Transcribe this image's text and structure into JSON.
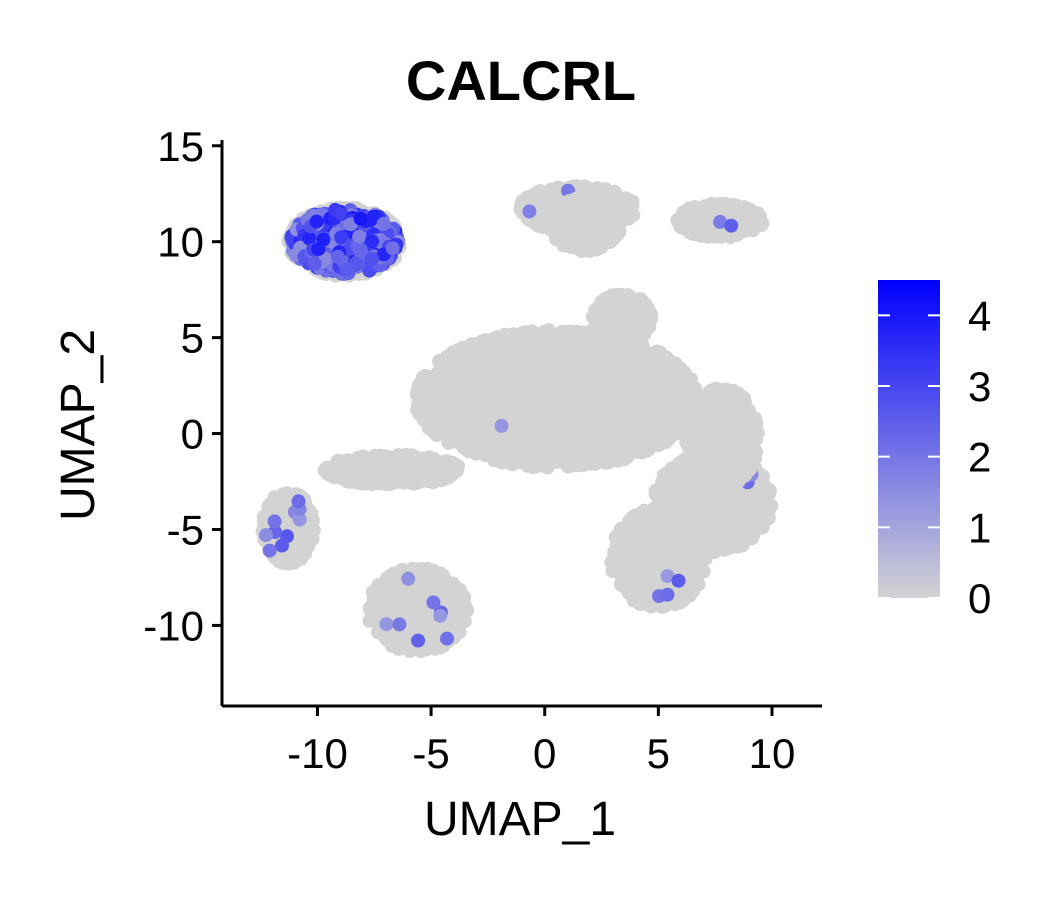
{
  "chart_data": {
    "type": "scatter",
    "title": "CALCRL",
    "xlabel": "UMAP_1",
    "ylabel": "UMAP_2",
    "xlim": [
      -14.2,
      12.2
    ],
    "ylim": [
      -14.2,
      15.3
    ],
    "xticks": [
      -10,
      -5,
      0,
      5,
      10
    ],
    "xtick_labels": [
      "-10",
      "-5",
      "0",
      "5",
      "10"
    ],
    "yticks": [
      15,
      10,
      5,
      0,
      -5,
      -10
    ],
    "ytick_labels": [
      "15",
      "10",
      "5",
      "0",
      "-5",
      "-10"
    ],
    "grid": false,
    "legend": {
      "type": "colorbar",
      "placement": "right",
      "min": 0,
      "max": 4.5,
      "ticks": [
        4,
        3,
        2,
        1,
        0
      ],
      "tick_labels": [
        "4",
        "3",
        "2",
        "1",
        "0"
      ],
      "low_color": "#d3d3d3",
      "high_color": "#0000ff"
    },
    "clusters": [
      {
        "cx": -8.8,
        "cy": 10.0,
        "rx": 2.5,
        "ry": 1.8,
        "expr": 2.6
      },
      {
        "cx": -11.3,
        "cy": -4.9,
        "rx": 1.15,
        "ry": 1.9,
        "expr": 0.35
      },
      {
        "cx": -5.6,
        "cy": -9.2,
        "rx": 2.2,
        "ry": 2.2,
        "expr": 0.15
      },
      {
        "cx": 0.5,
        "cy": 1.8,
        "rx": 6.2,
        "ry": 3.6,
        "expr": 0
      },
      {
        "cx": -6.7,
        "cy": -1.9,
        "rx": 3.0,
        "ry": 0.8,
        "expr": 0
      },
      {
        "cx": 3.4,
        "cy": 6.0,
        "rx": 1.3,
        "ry": 1.3,
        "expr": 0
      },
      {
        "cx": 1.4,
        "cy": 11.7,
        "rx": 2.6,
        "ry": 1.2,
        "expr": 0.05
      },
      {
        "cx": 1.8,
        "cy": 10.9,
        "rx": 1.6,
        "ry": 1.4,
        "expr": 0
      },
      {
        "cx": 7.7,
        "cy": 11.1,
        "rx": 1.9,
        "ry": 0.9,
        "expr": 0.05
      },
      {
        "cx": 7.4,
        "cy": -3.6,
        "rx": 2.6,
        "ry": 2.6,
        "expr": 0.05
      },
      {
        "cx": 5.0,
        "cy": -6.5,
        "rx": 2.1,
        "ry": 2.6,
        "expr": 0.05
      },
      {
        "cx": 7.8,
        "cy": -0.2,
        "rx": 1.6,
        "ry": 2.6,
        "expr": 0
      }
    ],
    "highlighted_points": [
      {
        "x": -12.1,
        "y": -6.1,
        "value": 2.0
      },
      {
        "x": -4.9,
        "y": -8.8,
        "value": 2.0
      },
      {
        "x": 5.4,
        "y": -8.4,
        "value": 2.2
      },
      {
        "x": -1.9,
        "y": 0.4,
        "value": 1.3
      },
      {
        "x": -7.6,
        "y": 9.1,
        "value": 2.8
      },
      {
        "x": -8.1,
        "y": 11.2,
        "value": 4.0
      }
    ]
  }
}
